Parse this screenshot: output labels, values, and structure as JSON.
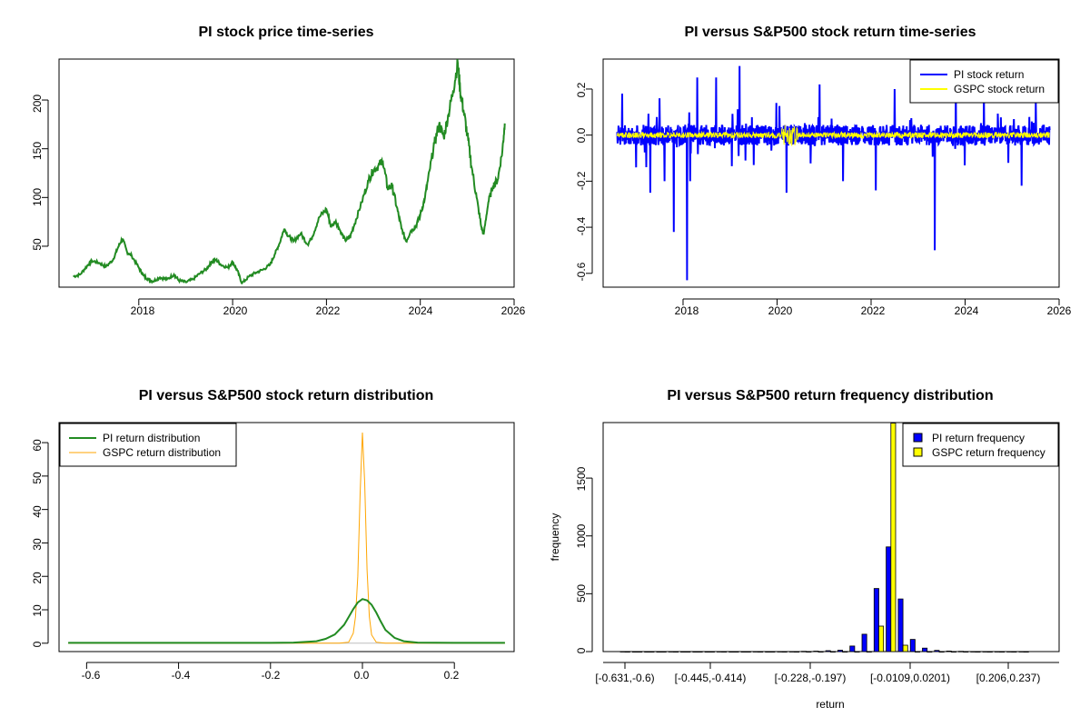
{
  "chart_data": [
    {
      "type": "line",
      "title": "PI stock price time-series",
      "xlabel": "",
      "ylabel": "",
      "xlim": [
        2016.3,
        2026.0
      ],
      "ylim": [
        8,
        242
      ],
      "x_ticks": [
        "2018",
        "2020",
        "2022",
        "2024",
        "2026"
      ],
      "y_ticks": [
        "50",
        "100",
        "150",
        "200"
      ],
      "colors": {
        "line": "#228B22"
      },
      "series": [
        {
          "values": [
            [
              2016.6,
              19
            ],
            [
              2016.75,
              21
            ],
            [
              2016.9,
              30
            ],
            [
              2017.0,
              35
            ],
            [
              2017.15,
              33
            ],
            [
              2017.3,
              29
            ],
            [
              2017.45,
              36
            ],
            [
              2017.55,
              48
            ],
            [
              2017.65,
              58
            ],
            [
              2017.75,
              44
            ],
            [
              2017.85,
              40
            ],
            [
              2018.0,
              28
            ],
            [
              2018.1,
              20
            ],
            [
              2018.2,
              16
            ],
            [
              2018.3,
              14
            ],
            [
              2018.45,
              18
            ],
            [
              2018.6,
              16
            ],
            [
              2018.75,
              21
            ],
            [
              2018.85,
              15
            ],
            [
              2019.0,
              13
            ],
            [
              2019.15,
              16
            ],
            [
              2019.3,
              22
            ],
            [
              2019.45,
              27
            ],
            [
              2019.55,
              34
            ],
            [
              2019.65,
              36
            ],
            [
              2019.75,
              31
            ],
            [
              2019.9,
              28
            ],
            [
              2020.0,
              34
            ],
            [
              2020.1,
              25
            ],
            [
              2020.2,
              12
            ],
            [
              2020.35,
              19
            ],
            [
              2020.5,
              23
            ],
            [
              2020.65,
              26
            ],
            [
              2020.8,
              31
            ],
            [
              2020.9,
              42
            ],
            [
              2021.0,
              53
            ],
            [
              2021.1,
              68
            ],
            [
              2021.2,
              60
            ],
            [
              2021.3,
              55
            ],
            [
              2021.45,
              63
            ],
            [
              2021.6,
              52
            ],
            [
              2021.7,
              60
            ],
            [
              2021.85,
              80
            ],
            [
              2022.0,
              88
            ],
            [
              2022.1,
              70
            ],
            [
              2022.2,
              76
            ],
            [
              2022.3,
              65
            ],
            [
              2022.4,
              56
            ],
            [
              2022.5,
              59
            ],
            [
              2022.6,
              73
            ],
            [
              2022.75,
              95
            ],
            [
              2022.9,
              118
            ],
            [
              2023.0,
              128
            ],
            [
              2023.1,
              132
            ],
            [
              2023.2,
              138
            ],
            [
              2023.3,
              110
            ],
            [
              2023.4,
              112
            ],
            [
              2023.5,
              90
            ],
            [
              2023.6,
              68
            ],
            [
              2023.7,
              55
            ],
            [
              2023.8,
              66
            ],
            [
              2023.9,
              70
            ],
            [
              2024.0,
              82
            ],
            [
              2024.1,
              100
            ],
            [
              2024.2,
              128
            ],
            [
              2024.3,
              155
            ],
            [
              2024.4,
              175
            ],
            [
              2024.5,
              162
            ],
            [
              2024.6,
              185
            ],
            [
              2024.7,
              210
            ],
            [
              2024.8,
              238
            ],
            [
              2024.85,
              210
            ],
            [
              2024.92,
              190
            ],
            [
              2025.0,
              165
            ],
            [
              2025.1,
              130
            ],
            [
              2025.2,
              100
            ],
            [
              2025.3,
              70
            ],
            [
              2025.35,
              62
            ],
            [
              2025.45,
              95
            ],
            [
              2025.55,
              112
            ],
            [
              2025.65,
              118
            ],
            [
              2025.75,
              148
            ],
            [
              2025.8,
              176
            ]
          ]
        }
      ]
    },
    {
      "type": "line",
      "title": "PI versus S&P500 stock return time-series",
      "xlabel": "",
      "ylabel": "",
      "xlim": [
        2016.3,
        2026.0
      ],
      "ylim": [
        -0.66,
        0.33
      ],
      "x_ticks": [
        "2018",
        "2020",
        "2022",
        "2024",
        "2026"
      ],
      "y_ticks": [
        "-0.6",
        "-0.4",
        "-0.2",
        "0.0",
        "0.2"
      ],
      "legend_position": "top-right",
      "colors": {
        "pi": "#0000FF",
        "gspc": "#FFFF00"
      },
      "series": [
        {
          "name": "PI stock return",
          "spikes": [
            [
              2016.7,
              0.18
            ],
            [
              2017.0,
              -0.14
            ],
            [
              2017.3,
              -0.25
            ],
            [
              2017.5,
              0.16
            ],
            [
              2017.6,
              -0.2
            ],
            [
              2017.8,
              -0.42
            ],
            [
              2018.08,
              -0.63
            ],
            [
              2018.15,
              -0.2
            ],
            [
              2018.3,
              0.25
            ],
            [
              2018.7,
              0.25
            ],
            [
              2019.2,
              0.3
            ],
            [
              2019.5,
              -0.13
            ],
            [
              2020.2,
              -0.25
            ],
            [
              2020.9,
              0.22
            ],
            [
              2021.4,
              -0.2
            ],
            [
              2022.1,
              -0.24
            ],
            [
              2022.5,
              0.2
            ],
            [
              2023.35,
              -0.5
            ],
            [
              2023.8,
              0.2
            ],
            [
              2024.4,
              0.18
            ],
            [
              2025.2,
              -0.22
            ],
            [
              2025.5,
              0.15
            ]
          ]
        },
        {
          "name": "GSPC stock return"
        }
      ]
    },
    {
      "type": "line",
      "title": "PI versus S&P500 stock return distribution",
      "xlabel": "",
      "ylabel": "",
      "xlim": [
        -0.66,
        0.33
      ],
      "ylim": [
        -2.5,
        66
      ],
      "x_ticks": [
        "-0.6",
        "-0.4",
        "-0.2",
        "0.0",
        "0.2"
      ],
      "y_ticks": [
        "0",
        "10",
        "20",
        "30",
        "40",
        "50",
        "60"
      ],
      "legend_position": "top-left",
      "colors": {
        "pi": "#228B22",
        "gspc": "#FFA500"
      },
      "series": [
        {
          "name": "PI return distribution",
          "values": [
            [
              -0.64,
              0.1
            ],
            [
              -0.2,
              0.1
            ],
            [
              -0.15,
              0.2
            ],
            [
              -0.1,
              0.6
            ],
            [
              -0.08,
              1.3
            ],
            [
              -0.06,
              2.6
            ],
            [
              -0.04,
              5.5
            ],
            [
              -0.03,
              7.8
            ],
            [
              -0.02,
              10.2
            ],
            [
              -0.01,
              12.2
            ],
            [
              0.0,
              13.2
            ],
            [
              0.01,
              12.8
            ],
            [
              0.02,
              11.5
            ],
            [
              0.03,
              9.2
            ],
            [
              0.04,
              6.5
            ],
            [
              0.05,
              4.0
            ],
            [
              0.07,
              1.6
            ],
            [
              0.09,
              0.6
            ],
            [
              0.12,
              0.2
            ],
            [
              0.2,
              0.1
            ],
            [
              0.31,
              0.1
            ]
          ]
        },
        {
          "name": "GSPC return distribution",
          "values": [
            [
              -0.64,
              0
            ],
            [
              -0.05,
              0
            ],
            [
              -0.03,
              0.3
            ],
            [
              -0.02,
              3.0
            ],
            [
              -0.015,
              8.0
            ],
            [
              -0.01,
              20.0
            ],
            [
              -0.005,
              45.0
            ],
            [
              0.0,
              63.0
            ],
            [
              0.005,
              48.0
            ],
            [
              0.01,
              22.0
            ],
            [
              0.015,
              8.0
            ],
            [
              0.02,
              2.5
            ],
            [
              0.03,
              0.3
            ],
            [
              0.05,
              0
            ],
            [
              0.31,
              0
            ]
          ]
        }
      ]
    },
    {
      "type": "bar",
      "title": "PI versus S&P500 return frequency distribution",
      "xlabel": "return",
      "ylabel": "frequency",
      "ylim": [
        0,
        1980
      ],
      "y_ticks": [
        "0",
        "500",
        "1000",
        "1500"
      ],
      "category_labels": [
        "[-0.631,-0.6)",
        "[-0.445,-0.414)",
        "[-0.228,-0.197)",
        "[-0.0109,0.0201)",
        "[0.206,0.237)"
      ],
      "legend_position": "top-right",
      "colors": {
        "pi": "#0000FF",
        "gspc": "#FFFF00"
      },
      "series": [
        {
          "name": "PI return frequency",
          "values": [
            1,
            0,
            0,
            0,
            1,
            0,
            0,
            0,
            1,
            0,
            0,
            1,
            0,
            1,
            1,
            2,
            4,
            8,
            12,
            48,
            150,
            545,
            905,
            455,
            105,
            30,
            10,
            5,
            2,
            1,
            1,
            1,
            1,
            1
          ]
        },
        {
          "name": "GSPC return frequency",
          "values": [
            0,
            0,
            0,
            0,
            0,
            0,
            0,
            0,
            0,
            0,
            0,
            0,
            0,
            0,
            0,
            0,
            0,
            0,
            0,
            0,
            0,
            220,
            1975,
            55,
            0,
            0,
            0,
            0,
            0,
            0,
            0,
            0,
            0,
            0
          ]
        }
      ]
    }
  ]
}
